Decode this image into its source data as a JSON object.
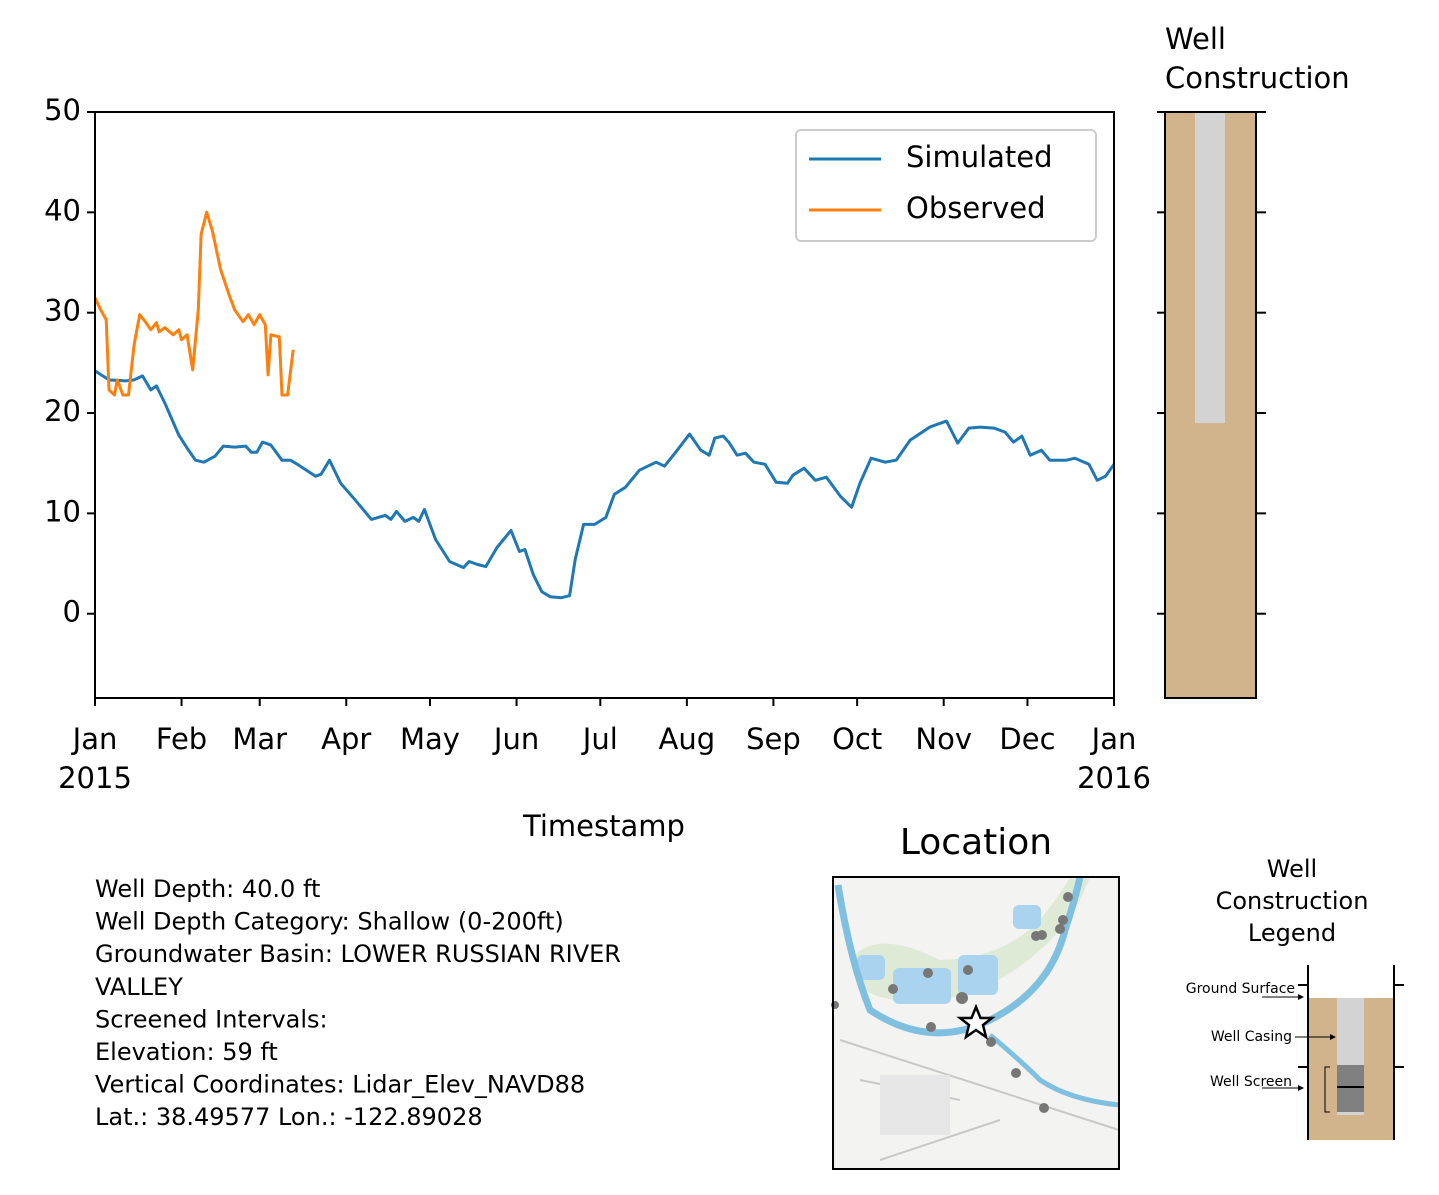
{
  "chart_data": [
    {
      "type": "line",
      "xlabel": "Timestamp",
      "xlim": [
        "2015-01-01",
        "2016-01-01"
      ],
      "xticks": [
        {
          "value": "2015-01-01",
          "label": "Jan\n2015"
        },
        {
          "value": "2015-02-01",
          "label": "Feb"
        },
        {
          "value": "2015-03-01",
          "label": "Mar"
        },
        {
          "value": "2015-04-01",
          "label": "Apr"
        },
        {
          "value": "2015-05-01",
          "label": "May"
        },
        {
          "value": "2015-06-01",
          "label": "Jun"
        },
        {
          "value": "2015-07-01",
          "label": "Jul"
        },
        {
          "value": "2015-08-01",
          "label": "Aug"
        },
        {
          "value": "2015-09-01",
          "label": "Sep"
        },
        {
          "value": "2015-10-01",
          "label": "Oct"
        },
        {
          "value": "2015-11-01",
          "label": "Nov"
        },
        {
          "value": "2015-12-01",
          "label": "Dec"
        },
        {
          "value": "2016-01-01",
          "label": "Jan\n2016"
        }
      ],
      "ylim": [
        -8.4,
        50
      ],
      "yticks": [
        0,
        10,
        20,
        30,
        40,
        50
      ],
      "legend": "upper right",
      "series": [
        {
          "name": "Simulated",
          "color": "#1f77b4",
          "x": [
            "2015-01-01",
            "2015-01-06",
            "2015-01-12",
            "2015-01-15",
            "2015-01-18",
            "2015-01-21",
            "2015-01-23",
            "2015-01-26",
            "2015-01-31",
            "2015-02-03",
            "2015-02-06",
            "2015-02-09",
            "2015-02-13",
            "2015-02-16",
            "2015-02-20",
            "2015-02-24",
            "2015-02-26",
            "2015-02-28",
            "2015-03-02",
            "2015-03-05",
            "2015-03-09",
            "2015-03-12",
            "2015-03-15",
            "2015-03-21",
            "2015-03-23",
            "2015-03-26",
            "2015-03-30",
            "2015-04-04",
            "2015-04-10",
            "2015-04-15",
            "2015-04-17",
            "2015-04-19",
            "2015-04-22",
            "2015-04-25",
            "2015-04-27",
            "2015-04-29",
            "2015-05-03",
            "2015-05-08",
            "2015-05-13",
            "2015-05-15",
            "2015-05-18",
            "2015-05-21",
            "2015-05-25",
            "2015-05-30",
            "2015-06-02",
            "2015-06-04",
            "2015-06-07",
            "2015-06-10",
            "2015-06-13",
            "2015-06-17",
            "2015-06-20",
            "2015-06-22",
            "2015-06-25",
            "2015-06-29",
            "2015-07-03",
            "2015-07-06",
            "2015-07-10",
            "2015-07-15",
            "2015-07-21",
            "2015-07-24",
            "2015-07-28",
            "2015-08-02",
            "2015-08-06",
            "2015-08-09",
            "2015-08-11",
            "2015-08-14",
            "2015-08-16",
            "2015-08-19",
            "2015-08-22",
            "2015-08-25",
            "2015-08-29",
            "2015-09-02",
            "2015-09-06",
            "2015-09-08",
            "2015-09-12",
            "2015-09-16",
            "2015-09-20",
            "2015-09-25",
            "2015-09-29",
            "2015-10-02",
            "2015-10-06",
            "2015-10-11",
            "2015-10-15",
            "2015-10-20",
            "2015-10-27",
            "2015-11-02",
            "2015-11-06",
            "2015-11-10",
            "2015-11-14",
            "2015-11-19",
            "2015-11-23",
            "2015-11-26",
            "2015-11-29",
            "2015-12-02",
            "2015-12-06",
            "2015-12-09",
            "2015-12-15",
            "2015-12-18",
            "2015-12-23",
            "2015-12-26",
            "2015-12-29",
            "2016-01-01"
          ],
          "values": [
            24.2,
            23.3,
            23.2,
            23.3,
            23.7,
            22.3,
            22.7,
            21.0,
            17.8,
            16.5,
            15.3,
            15.1,
            15.7,
            16.7,
            16.6,
            16.7,
            16.1,
            16.1,
            17.1,
            16.8,
            15.3,
            15.3,
            14.8,
            13.7,
            13.9,
            15.3,
            13.0,
            11.4,
            9.4,
            9.8,
            9.4,
            10.2,
            9.2,
            9.6,
            9.2,
            10.4,
            7.4,
            5.2,
            4.6,
            5.2,
            4.9,
            4.7,
            6.6,
            8.3,
            6.2,
            6.4,
            3.9,
            2.2,
            1.7,
            1.6,
            1.8,
            5.4,
            8.9,
            8.9,
            9.6,
            11.9,
            12.6,
            14.3,
            15.1,
            14.7,
            16.1,
            17.9,
            16.3,
            15.8,
            17.5,
            17.7,
            17.1,
            15.8,
            16.0,
            15.1,
            14.9,
            13.1,
            13.0,
            13.8,
            14.5,
            13.3,
            13.6,
            11.7,
            10.6,
            13.0,
            15.5,
            15.1,
            15.3,
            17.3,
            18.6,
            19.2,
            17.0,
            18.5,
            18.6,
            18.5,
            18.1,
            17.1,
            17.7,
            15.8,
            16.3,
            15.3,
            15.3,
            15.5,
            14.9,
            13.3,
            13.7,
            14.9
          ]
        },
        {
          "name": "Observed",
          "color": "#ff7f0e",
          "x": [
            "2015-01-01",
            "2015-01-03",
            "2015-01-05",
            "2015-01-06",
            "2015-01-08",
            "2015-01-09",
            "2015-01-11",
            "2015-01-13",
            "2015-01-15",
            "2015-01-17",
            "2015-01-19",
            "2015-01-21",
            "2015-01-23",
            "2015-01-24",
            "2015-01-26",
            "2015-01-29",
            "2015-01-31",
            "2015-02-01",
            "2015-02-03",
            "2015-02-05",
            "2015-02-07",
            "2015-02-08",
            "2015-02-10",
            "2015-02-12",
            "2015-02-15",
            "2015-02-18",
            "2015-02-20",
            "2015-02-23",
            "2015-02-25",
            "2015-02-27",
            "2015-03-01",
            "2015-03-03",
            "2015-03-04",
            "2015-03-05",
            "2015-03-08",
            "2015-03-09",
            "2015-03-11",
            "2015-03-13"
          ],
          "values": [
            31.5,
            30.3,
            29.3,
            22.3,
            21.8,
            23.3,
            21.8,
            21.8,
            26.8,
            29.8,
            29.1,
            28.3,
            29.0,
            28.1,
            28.5,
            27.8,
            28.3,
            27.3,
            27.8,
            24.3,
            30.3,
            37.8,
            40.0,
            38.2,
            34.3,
            31.8,
            30.3,
            29.1,
            29.8,
            28.8,
            29.8,
            28.8,
            23.8,
            27.8,
            27.6,
            21.8,
            21.8,
            26.3
          ]
        }
      ]
    },
    {
      "type": "well",
      "title": "Well\nConstruction",
      "ylim": [
        -8.4,
        50
      ],
      "yticks": [
        0,
        10,
        20,
        30,
        40,
        50
      ],
      "color": "#d2b48c",
      "casing": {
        "top": 50,
        "bottom": 19,
        "color": "#d3d3d3"
      }
    }
  ],
  "info": {
    "lines": [
      "Well Depth: 40.0 ft",
      "Well Depth Category: Shallow (0-200ft)",
      "Groundwater Basin: LOWER RUSSIAN RIVER",
      "VALLEY",
      "Screened Intervals:",
      "Elevation: 59 ft",
      "Vertical Coordinates: Lidar_Elev_NAVD88",
      "Lat.: 38.49577 Lon.: -122.89028"
    ]
  },
  "map": {
    "title": "Location"
  },
  "construction_legend": {
    "title": "Well\nConstruction\nLegend",
    "labels": [
      "Ground Surface",
      "Well Casing",
      "Well Screen"
    ]
  }
}
